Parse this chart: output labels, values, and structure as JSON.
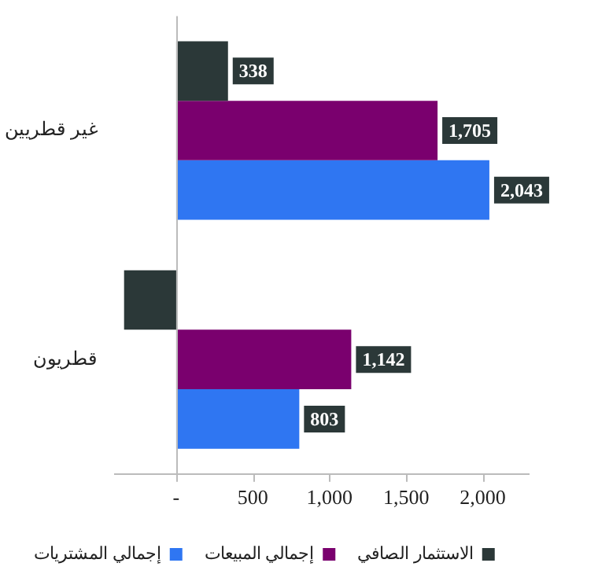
{
  "chart_data": {
    "type": "bar",
    "orientation": "horizontal",
    "categories": [
      "غير قطريين",
      "قطريون"
    ],
    "series": [
      {
        "name": "الاستثمار الصافي",
        "color": "#2b3838",
        "values": [
          338,
          -340
        ],
        "value_labels": [
          "338",
          null
        ]
      },
      {
        "name": "إجمالي المبيعات",
        "color": "#7a006e",
        "values": [
          1705,
          1142
        ],
        "value_labels": [
          "1,705",
          "1,142"
        ]
      },
      {
        "name": "إجمالي المشتريات",
        "color": "#2f76f2",
        "values": [
          2043,
          803
        ],
        "value_labels": [
          "2,043",
          "803"
        ]
      }
    ],
    "xlim": [
      -400,
      2300
    ],
    "xticks": [
      {
        "value": 0,
        "label": "-"
      },
      {
        "value": 500,
        "label": "500"
      },
      {
        "value": 1000,
        "label": "1,000"
      },
      {
        "value": 1500,
        "label": "1,500"
      },
      {
        "value": 2000,
        "label": "2,000"
      }
    ],
    "legend": "bottom"
  }
}
